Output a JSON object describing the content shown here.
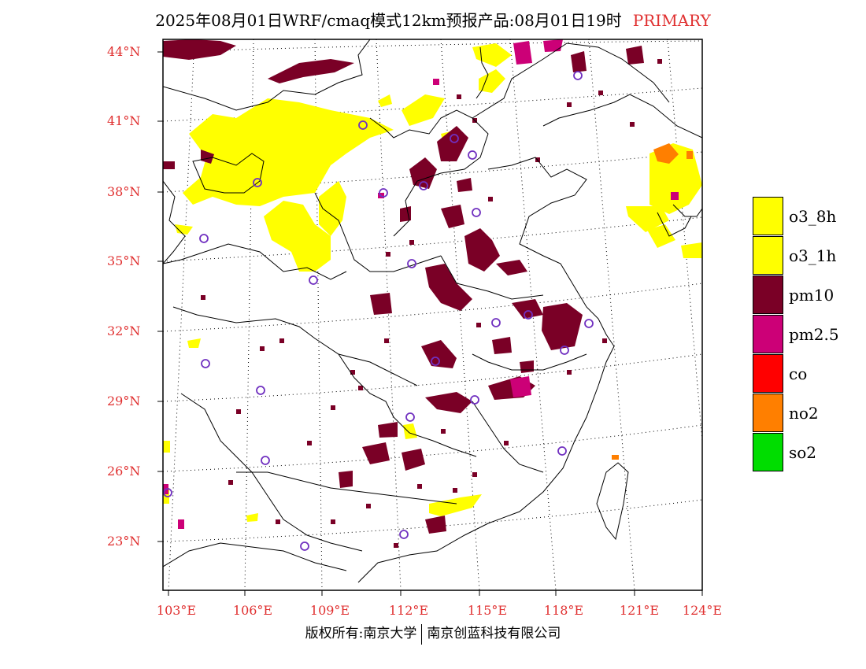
{
  "title": {
    "main": "2025年08月01日WRF/cmaq模式12km预报产品:08月01日19时",
    "primary": "PRIMARY"
  },
  "axes": {
    "lat_labels": [
      "44°N",
      "41°N",
      "38°N",
      "35°N",
      "32°N",
      "29°N",
      "26°N",
      "23°N"
    ],
    "lon_labels": [
      "103°E",
      "106°E",
      "109°E",
      "112°E",
      "115°E",
      "118°E",
      "121°E",
      "124°E"
    ]
  },
  "legend": [
    {
      "label": "o3_8h",
      "color": "#ffff00"
    },
    {
      "label": "o3_1h",
      "color": "#ffff00"
    },
    {
      "label": "pm10",
      "color": "#7a0026"
    },
    {
      "label": "pm2.5",
      "color": "#cc0077"
    },
    {
      "label": "co",
      "color": "#ff0000"
    },
    {
      "label": "no2",
      "color": "#ff7f00"
    },
    {
      "label": "so2",
      "color": "#00dd00"
    }
  ],
  "footer": {
    "left": "版权所有:南京大学",
    "right": "南京创蓝科技有限公司"
  }
}
